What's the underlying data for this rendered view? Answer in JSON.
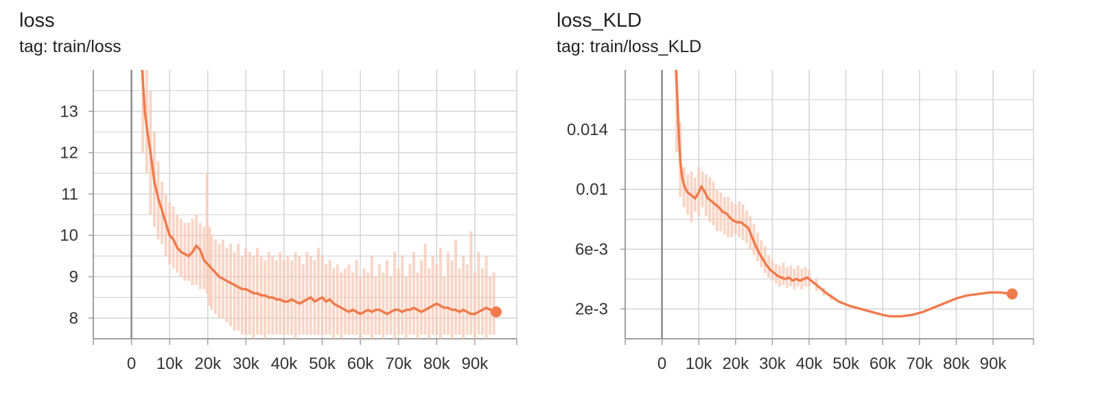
{
  "colors": {
    "line": "#f07a4b",
    "raw": "#f7c7b4",
    "grid": "#d3d3d3",
    "axis": "#9e9e9e",
    "zero": "#8a8a8a"
  },
  "chart_data": [
    {
      "type": "line",
      "title": "loss",
      "subtitle": "tag: train/loss",
      "xlim": [
        -10000,
        101000
      ],
      "ylim": [
        7.5,
        14.0
      ],
      "y_scale": "linear",
      "grid": true,
      "xticks": [
        0,
        10000,
        20000,
        30000,
        40000,
        50000,
        60000,
        70000,
        80000,
        90000
      ],
      "xtick_labels": [
        "0",
        "10k",
        "20k",
        "30k",
        "40k",
        "50k",
        "60k",
        "70k",
        "80k",
        "90k"
      ],
      "yticks": [
        8,
        9,
        10,
        11,
        12,
        13
      ],
      "ytick_labels": [
        "8",
        "9",
        "10",
        "11",
        "12",
        "13"
      ],
      "ygrid_minor": [
        7.5,
        8.5,
        9.5,
        10.5,
        11.5,
        12.5,
        13.5
      ],
      "series": [
        {
          "style": "smoothed",
          "x": [
            2800,
            3500,
            4200,
            5000,
            6000,
            7000,
            8000,
            9000,
            10000,
            11000,
            12000,
            13000,
            14000,
            15000,
            16000,
            17000,
            18000,
            19000,
            20000,
            21000,
            22000,
            23000,
            24000,
            25000,
            26000,
            27000,
            28000,
            29000,
            30000,
            31000,
            32000,
            33000,
            34000,
            35000,
            36000,
            37000,
            38000,
            39000,
            40000,
            41000,
            42000,
            43000,
            44000,
            45000,
            46000,
            47000,
            48000,
            49000,
            50000,
            51000,
            52000,
            53000,
            54000,
            55000,
            56000,
            57000,
            58000,
            59000,
            60000,
            61000,
            62000,
            63000,
            64000,
            65000,
            66000,
            67000,
            68000,
            69000,
            70000,
            71000,
            72000,
            73000,
            74000,
            75000,
            76000,
            77000,
            78000,
            79000,
            80000,
            81000,
            82000,
            83000,
            84000,
            85000,
            86000,
            87000,
            88000,
            89000,
            90000,
            91000,
            92000,
            93000,
            94000,
            95000,
            95600
          ],
          "values": [
            14.0,
            13.0,
            12.5,
            12.0,
            11.3,
            10.9,
            10.6,
            10.3,
            10.0,
            9.9,
            9.7,
            9.6,
            9.55,
            9.5,
            9.6,
            9.75,
            9.65,
            9.4,
            9.3,
            9.2,
            9.1,
            9.0,
            8.95,
            8.9,
            8.85,
            8.8,
            8.75,
            8.7,
            8.7,
            8.65,
            8.6,
            8.6,
            8.55,
            8.55,
            8.5,
            8.5,
            8.45,
            8.45,
            8.4,
            8.4,
            8.45,
            8.4,
            8.35,
            8.4,
            8.45,
            8.5,
            8.4,
            8.45,
            8.5,
            8.4,
            8.45,
            8.35,
            8.3,
            8.25,
            8.2,
            8.15,
            8.2,
            8.15,
            8.1,
            8.15,
            8.2,
            8.15,
            8.2,
            8.2,
            8.15,
            8.1,
            8.15,
            8.2,
            8.2,
            8.15,
            8.2,
            8.2,
            8.25,
            8.2,
            8.15,
            8.2,
            8.25,
            8.3,
            8.35,
            8.3,
            8.25,
            8.25,
            8.2,
            8.2,
            8.15,
            8.2,
            8.15,
            8.1,
            8.1,
            8.15,
            8.2,
            8.25,
            8.2,
            8.2,
            8.15
          ]
        },
        {
          "style": "raw",
          "x": [
            3000,
            4000,
            5000,
            6000,
            7000,
            8000,
            9000,
            10000,
            11000,
            12000,
            13000,
            14000,
            15000,
            16000,
            17000,
            18000,
            19000,
            19800,
            20500,
            21000,
            22000,
            23000,
            24000,
            25000,
            26000,
            27000,
            28000,
            29000,
            30000,
            31000,
            32000,
            33000,
            34000,
            35000,
            36000,
            37000,
            38000,
            39000,
            40000,
            41000,
            42000,
            43000,
            44000,
            45000,
            46000,
            47000,
            48000,
            49000,
            50000,
            51000,
            52000,
            53000,
            54000,
            55000,
            56000,
            57000,
            58000,
            59000,
            60000,
            61000,
            62000,
            63000,
            64000,
            65000,
            66000,
            67000,
            68000,
            69000,
            70000,
            71000,
            72000,
            73000,
            74000,
            75000,
            76000,
            77000,
            78000,
            79000,
            80000,
            81000,
            82000,
            83000,
            84000,
            85000,
            86000,
            87000,
            88000,
            89000,
            90000,
            91000,
            92000,
            93000,
            94000,
            95000
          ],
          "low": [
            12.0,
            11.5,
            10.5,
            10.2,
            9.9,
            9.8,
            9.5,
            9.3,
            9.2,
            9.1,
            9.0,
            8.9,
            8.9,
            8.8,
            8.8,
            8.7,
            8.7,
            8.6,
            8.3,
            8.2,
            8.1,
            8.0,
            8.0,
            7.9,
            7.8,
            7.7,
            7.7,
            7.6,
            7.6,
            7.6,
            7.5,
            7.6,
            7.6,
            7.5,
            7.6,
            7.6,
            7.6,
            7.6,
            7.6,
            7.6,
            7.6,
            7.5,
            7.6,
            7.6,
            7.6,
            7.6,
            7.6,
            7.6,
            7.6,
            7.6,
            7.6,
            7.5,
            7.6,
            7.5,
            7.6,
            7.6,
            7.6,
            7.6,
            7.5,
            7.6,
            7.6,
            7.5,
            7.6,
            7.6,
            7.5,
            7.6,
            7.6,
            7.5,
            7.6,
            7.6,
            7.5,
            7.6,
            7.6,
            7.5,
            7.6,
            7.6,
            7.5,
            7.6,
            7.6,
            7.5,
            7.6,
            7.6,
            7.5,
            7.6,
            7.6,
            7.5,
            7.6,
            7.6,
            7.5,
            7.6,
            7.6,
            7.5,
            7.6,
            7.6
          ],
          "high": [
            14.0,
            14.0,
            13.5,
            12.5,
            11.8,
            11.3,
            11.0,
            10.8,
            10.7,
            10.5,
            10.4,
            10.3,
            10.3,
            10.4,
            10.5,
            10.3,
            10.2,
            11.5,
            10.2,
            10.0,
            9.9,
            9.8,
            9.9,
            9.7,
            9.8,
            9.6,
            9.8,
            9.5,
            9.7,
            9.6,
            9.5,
            9.7,
            9.5,
            9.4,
            9.6,
            9.5,
            9.4,
            9.6,
            9.4,
            9.5,
            9.4,
            9.6,
            9.5,
            9.3,
            9.6,
            9.5,
            9.4,
            9.7,
            9.5,
            9.3,
            9.4,
            9.2,
            9.3,
            9.1,
            9.2,
            9.3,
            9.1,
            9.4,
            9.0,
            9.2,
            9.1,
            9.5,
            9.0,
            9.3,
            9.1,
            9.4,
            9.0,
            9.6,
            9.2,
            9.5,
            9.0,
            9.3,
            9.6,
            9.1,
            9.4,
            9.8,
            9.2,
            9.5,
            9.3,
            9.7,
            9.0,
            9.6,
            9.4,
            9.9,
            9.2,
            9.5,
            9.3,
            10.1,
            9.1,
            9.6,
            9.2,
            9.5,
            9.0,
            9.1
          ]
        }
      ]
    },
    {
      "type": "line",
      "title": "loss_KLD",
      "subtitle": "tag: train/loss_KLD",
      "xlim": [
        -10000,
        101000
      ],
      "ylim": [
        0.0,
        0.018
      ],
      "y_scale": "linear",
      "grid": true,
      "xticks": [
        0,
        10000,
        20000,
        30000,
        40000,
        50000,
        60000,
        70000,
        80000,
        90000
      ],
      "xtick_labels": [
        "0",
        "10k",
        "20k",
        "30k",
        "40k",
        "50k",
        "60k",
        "70k",
        "80k",
        "90k"
      ],
      "yticks": [
        0.002,
        0.006,
        0.01,
        0.014
      ],
      "ytick_labels": [
        "2e-3",
        "6e-3",
        "0.01",
        "0.014"
      ],
      "ygrid_minor": [
        0.0,
        0.004,
        0.008,
        0.012,
        0.016
      ],
      "series": [
        {
          "style": "smoothed",
          "x": [
            3800,
            4200,
            4600,
            5000,
            5500,
            6000,
            6500,
            7000,
            8000,
            9000,
            10000,
            10700,
            11500,
            12500,
            13500,
            14500,
            15500,
            16500,
            17500,
            18500,
            19500,
            20500,
            21500,
            22500,
            23500,
            24500,
            25500,
            26500,
            27500,
            28500,
            29500,
            30500,
            31500,
            32500,
            33500,
            34500,
            35500,
            36500,
            37500,
            38500,
            39500,
            41000,
            43000,
            45000,
            48000,
            51000,
            54000,
            57000,
            60000,
            62000,
            65000,
            68000,
            71000,
            74000,
            77000,
            80000,
            83000,
            86000,
            89000,
            92000,
            95200
          ],
          "values": [
            0.018,
            0.016,
            0.0135,
            0.0118,
            0.0108,
            0.0103,
            0.01,
            0.0098,
            0.0096,
            0.0094,
            0.0098,
            0.0102,
            0.0099,
            0.0094,
            0.0092,
            0.009,
            0.0088,
            0.0085,
            0.0084,
            0.0081,
            0.0079,
            0.0078,
            0.0078,
            0.0076,
            0.0074,
            0.0068,
            0.0062,
            0.0057,
            0.0053,
            0.0049,
            0.0046,
            0.0044,
            0.0042,
            0.0041,
            0.004,
            0.0041,
            0.0039,
            0.004,
            0.0039,
            0.004,
            0.0041,
            0.0038,
            0.0034,
            0.003,
            0.0025,
            0.0022,
            0.002,
            0.0018,
            0.0016,
            0.0015,
            0.0015,
            0.0016,
            0.0018,
            0.0021,
            0.0024,
            0.0027,
            0.0029,
            0.003,
            0.0031,
            0.0031,
            0.003
          ]
        },
        {
          "style": "raw",
          "x": [
            4000,
            5000,
            6000,
            7000,
            8000,
            9000,
            10000,
            11000,
            12000,
            13000,
            14000,
            15000,
            16000,
            17000,
            18000,
            19000,
            20000,
            21000,
            22000,
            23000,
            24000,
            25000,
            26000,
            27000,
            28000,
            29000,
            30000,
            31000,
            32000,
            33000,
            34000,
            35000,
            36000,
            37000,
            38000,
            39000,
            40000,
            42000,
            44000,
            46000
          ],
          "low": [
            0.0125,
            0.0095,
            0.0088,
            0.0083,
            0.0078,
            0.0085,
            0.0082,
            0.0088,
            0.0082,
            0.0078,
            0.0076,
            0.0072,
            0.0072,
            0.007,
            0.0068,
            0.0068,
            0.007,
            0.0068,
            0.0066,
            0.0064,
            0.006,
            0.0056,
            0.0052,
            0.0048,
            0.0044,
            0.0041,
            0.0039,
            0.0037,
            0.0035,
            0.0036,
            0.0034,
            0.0035,
            0.0033,
            0.0035,
            0.0033,
            0.0035,
            0.0035,
            0.0032,
            0.0029,
            0.0026
          ],
          "high": [
            0.018,
            0.0145,
            0.0115,
            0.011,
            0.0112,
            0.0108,
            0.0115,
            0.0112,
            0.011,
            0.0108,
            0.0105,
            0.01,
            0.0098,
            0.0095,
            0.0095,
            0.0092,
            0.009,
            0.0092,
            0.009,
            0.0086,
            0.0082,
            0.0077,
            0.0071,
            0.0066,
            0.0062,
            0.0056,
            0.0053,
            0.005,
            0.0049,
            0.0051,
            0.0048,
            0.0049,
            0.0047,
            0.0049,
            0.0047,
            0.0048,
            0.0046,
            0.004,
            0.0034,
            0.003
          ]
        }
      ]
    }
  ]
}
